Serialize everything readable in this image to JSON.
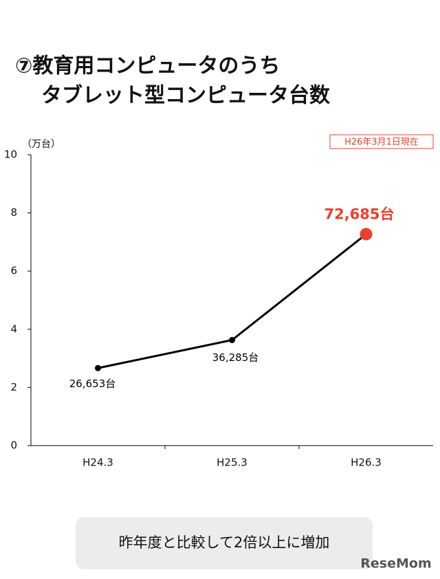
{
  "chart_data": {
    "type": "line",
    "title": [
      "⑦教育用コンピュータのうち",
      "タブレット型コンピュータ台数"
    ],
    "y_label": "（万台）",
    "note": "H26年3月1日現在",
    "categories": [
      "H24.3",
      "H25.3",
      "H26.3"
    ],
    "series": [
      {
        "color": "#000000",
        "values": [
          2.6653,
          3.6285,
          7.2685
        ],
        "value_labels": [
          "26,653台",
          "36,285台",
          "72,685台"
        ],
        "point_colors": [
          "#000000",
          "#000000",
          "#e8412c"
        ]
      }
    ],
    "ylim": [
      0,
      10
    ],
    "yticks": [
      0,
      2,
      4,
      6,
      8,
      10
    ],
    "footer": "昨年度と比較して2倍以上に増加",
    "logo": "ReseMom"
  }
}
